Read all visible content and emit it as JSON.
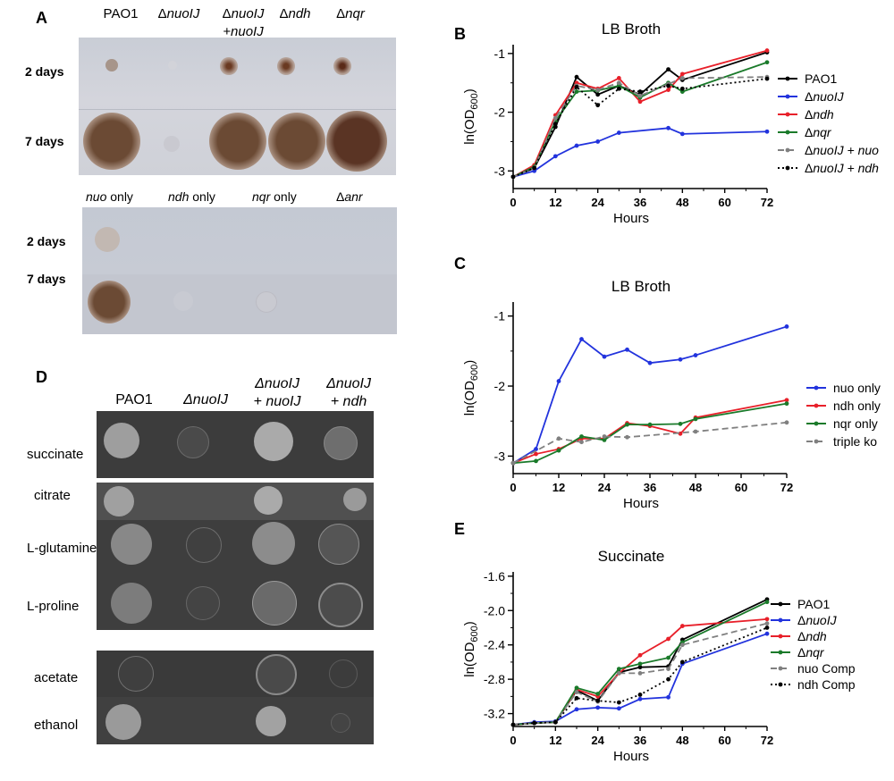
{
  "panel_letters": {
    "a": "A",
    "b": "B",
    "c": "C",
    "d": "D",
    "e": "E"
  },
  "panelA": {
    "top_columns": [
      {
        "delta": "",
        "italic": "",
        "suffix": "PAO1",
        "line2": ""
      },
      {
        "delta": "Δ",
        "italic": "nuoIJ",
        "suffix": "",
        "line2": ""
      },
      {
        "delta": "Δ",
        "italic": "nuoIJ",
        "suffix": "",
        "line2": "+nuoIJ"
      },
      {
        "delta": "Δ",
        "italic": "ndh",
        "suffix": "",
        "line2": ""
      },
      {
        "delta": "Δ",
        "italic": "nqr",
        "suffix": "",
        "line2": ""
      }
    ],
    "bottom_columns": [
      {
        "italic": "nuo",
        "rest": " only"
      },
      {
        "italic": "ndh",
        "rest": " only"
      },
      {
        "italic": "nqr",
        "rest": " only"
      },
      {
        "italic": "",
        "rest": "Δ",
        "italic2": "anr"
      }
    ],
    "row_labels": {
      "day2": "2 days",
      "day7": "7 days"
    }
  },
  "panelD": {
    "columns": [
      {
        "line1": "PAO1",
        "line2": ""
      },
      {
        "line1": "ΔnuoIJ",
        "line2": ""
      },
      {
        "line1": "ΔnuoIJ",
        "line2": "+ nuoIJ"
      },
      {
        "line1": "ΔnuoIJ",
        "line2": "+ ndh"
      }
    ],
    "rows": [
      "succinate",
      "citrate",
      "L-glutamine",
      "L-proline",
      "acetate",
      "ethanol"
    ]
  },
  "chart_data": [
    {
      "id": "B",
      "type": "line",
      "title": "LB Broth",
      "xlabel": "Hours",
      "ylabel_main": "ln(OD",
      "ylabel_sub": "600",
      "ylabel_end": ")",
      "xlim": [
        0,
        72
      ],
      "ylim": [
        -3.3,
        -0.85
      ],
      "xticks": [
        "0",
        "12",
        "24",
        "36",
        "48",
        "60",
        "72"
      ],
      "yticks": [
        "-3",
        "-2",
        "-1"
      ],
      "series": [
        {
          "name": "PAO1",
          "color": "#000000",
          "dash": "",
          "x": [
            0,
            6,
            12,
            18,
            24,
            30,
            36,
            44,
            48,
            72
          ],
          "y": [
            -3.1,
            -2.95,
            -2.25,
            -1.4,
            -1.7,
            -1.55,
            -1.7,
            -1.27,
            -1.45,
            -0.98
          ]
        },
        {
          "name": "ΔnuoIJ",
          "color": "#2233dd",
          "dash": "",
          "x": [
            0,
            6,
            12,
            18,
            24,
            30,
            44,
            48,
            72
          ],
          "y": [
            -3.1,
            -3.0,
            -2.75,
            -2.57,
            -2.5,
            -2.35,
            -2.27,
            -2.37,
            -2.33
          ]
        },
        {
          "name": "Δndh",
          "color": "#e8202a",
          "dash": "",
          "x": [
            0,
            6,
            12,
            18,
            24,
            30,
            36,
            44,
            48,
            72
          ],
          "y": [
            -3.1,
            -2.9,
            -2.05,
            -1.5,
            -1.6,
            -1.42,
            -1.82,
            -1.62,
            -1.35,
            -0.95
          ]
        },
        {
          "name": "Δnqr",
          "color": "#1a7a2a",
          "dash": "",
          "x": [
            0,
            6,
            12,
            18,
            24,
            30,
            36,
            44,
            48,
            72
          ],
          "y": [
            -3.1,
            -2.93,
            -2.15,
            -1.65,
            -1.63,
            -1.55,
            -1.75,
            -1.5,
            -1.65,
            -1.15
          ]
        },
        {
          "name": "ΔnuoIJ + nuo",
          "color": "#808080",
          "dash": "7,4",
          "x": [
            0,
            6,
            12,
            18,
            24,
            30,
            36,
            44,
            48,
            72
          ],
          "y": [
            -3.1,
            -2.95,
            -2.1,
            -1.55,
            -1.62,
            -1.5,
            -1.72,
            -1.52,
            -1.42,
            -1.4
          ]
        },
        {
          "name": "ΔnuoIJ + ndh",
          "color": "#000000",
          "dash": "2,3",
          "x": [
            0,
            6,
            12,
            18,
            24,
            30,
            36,
            44,
            48,
            72
          ],
          "y": [
            -3.1,
            -2.95,
            -2.2,
            -1.57,
            -1.88,
            -1.6,
            -1.65,
            -1.55,
            -1.6,
            -1.43
          ]
        }
      ]
    },
    {
      "id": "C",
      "type": "line",
      "title": "LB Broth",
      "xlabel": "Hours",
      "ylabel_main": "ln(OD",
      "ylabel_sub": "600",
      "ylabel_end": ")",
      "xlim": [
        0,
        72
      ],
      "ylim": [
        -3.25,
        -0.8
      ],
      "xticks": [
        "0",
        "12",
        "24",
        "36",
        "48",
        "60",
        "72"
      ],
      "yticks": [
        "-3",
        "-2",
        "-1"
      ],
      "series": [
        {
          "name": "nuo only",
          "color": "#2233dd",
          "dash": "",
          "x": [
            0,
            6,
            12,
            18,
            24,
            30,
            36,
            44,
            48,
            72
          ],
          "y": [
            -3.1,
            -2.9,
            -1.93,
            -1.33,
            -1.58,
            -1.48,
            -1.67,
            -1.62,
            -1.56,
            -1.15
          ]
        },
        {
          "name": "ndh only",
          "color": "#e8202a",
          "dash": "",
          "x": [
            0,
            6,
            12,
            18,
            24,
            30,
            36,
            44,
            48,
            72
          ],
          "y": [
            -3.1,
            -2.97,
            -2.9,
            -2.75,
            -2.75,
            -2.53,
            -2.57,
            -2.68,
            -2.45,
            -2.2
          ]
        },
        {
          "name": "nqr only",
          "color": "#1a7a2a",
          "dash": "",
          "x": [
            0,
            6,
            12,
            18,
            24,
            30,
            36,
            44,
            48,
            72
          ],
          "y": [
            -3.1,
            -3.07,
            -2.92,
            -2.72,
            -2.77,
            -2.55,
            -2.55,
            -2.54,
            -2.47,
            -2.25
          ]
        },
        {
          "name": "triple ko",
          "color": "#808080",
          "dash": "7,4",
          "x": [
            0,
            12,
            18,
            24,
            30,
            48,
            72
          ],
          "y": [
            -3.1,
            -2.75,
            -2.8,
            -2.72,
            -2.73,
            -2.65,
            -2.52
          ]
        }
      ]
    },
    {
      "id": "E",
      "type": "line",
      "title": "Succinate",
      "xlabel": "Hours",
      "ylabel_main": "ln(OD",
      "ylabel_sub": "600",
      "ylabel_end": ")",
      "xlim": [
        0,
        72
      ],
      "ylim": [
        -3.35,
        -1.55
      ],
      "xticks": [
        "0",
        "12",
        "24",
        "36",
        "48",
        "60",
        "72"
      ],
      "yticks": [
        "-3.2",
        "-2.8",
        "-2.4",
        "-2.0",
        "-1.6"
      ],
      "series": [
        {
          "name": "PAO1",
          "color": "#000000",
          "dash": "",
          "x": [
            0,
            6,
            12,
            18,
            24,
            30,
            36,
            44,
            48,
            72
          ],
          "y": [
            -3.33,
            -3.31,
            -3.3,
            -2.93,
            -3.05,
            -2.72,
            -2.66,
            -2.65,
            -2.34,
            -1.87
          ]
        },
        {
          "name": "ΔnuoIJ",
          "color": "#2233dd",
          "dash": "",
          "x": [
            0,
            6,
            12,
            18,
            24,
            30,
            36,
            44,
            48,
            72
          ],
          "y": [
            -3.33,
            -3.3,
            -3.29,
            -3.15,
            -3.13,
            -3.14,
            -3.03,
            -3.01,
            -2.62,
            -2.27
          ]
        },
        {
          "name": "Δndh",
          "color": "#e8202a",
          "dash": "",
          "x": [
            0,
            6,
            12,
            18,
            24,
            30,
            36,
            44,
            48,
            72
          ],
          "y": [
            -3.33,
            -3.31,
            -3.3,
            -2.92,
            -3.0,
            -2.73,
            -2.52,
            -2.33,
            -2.18,
            -2.1
          ]
        },
        {
          "name": "Δnqr",
          "color": "#1a7a2a",
          "dash": "",
          "x": [
            0,
            6,
            12,
            18,
            24,
            30,
            36,
            44,
            48,
            72
          ],
          "y": [
            -3.33,
            -3.31,
            -3.3,
            -2.9,
            -2.97,
            -2.68,
            -2.62,
            -2.55,
            -2.37,
            -1.9
          ]
        },
        {
          "name": "nuo Comp",
          "color": "#808080",
          "dash": "7,4",
          "x": [
            0,
            6,
            12,
            18,
            24,
            30,
            36,
            44,
            48,
            72
          ],
          "y": [
            -3.33,
            -3.31,
            -3.3,
            -2.95,
            -3.06,
            -2.73,
            -2.73,
            -2.68,
            -2.4,
            -2.15
          ]
        },
        {
          "name": "ndh Comp",
          "color": "#000000",
          "dash": "2,3",
          "x": [
            0,
            6,
            12,
            18,
            24,
            30,
            36,
            44,
            48,
            72
          ],
          "y": [
            -3.33,
            -3.31,
            -3.3,
            -3.02,
            -3.05,
            -3.07,
            -2.98,
            -2.8,
            -2.6,
            -2.2
          ]
        }
      ]
    }
  ]
}
